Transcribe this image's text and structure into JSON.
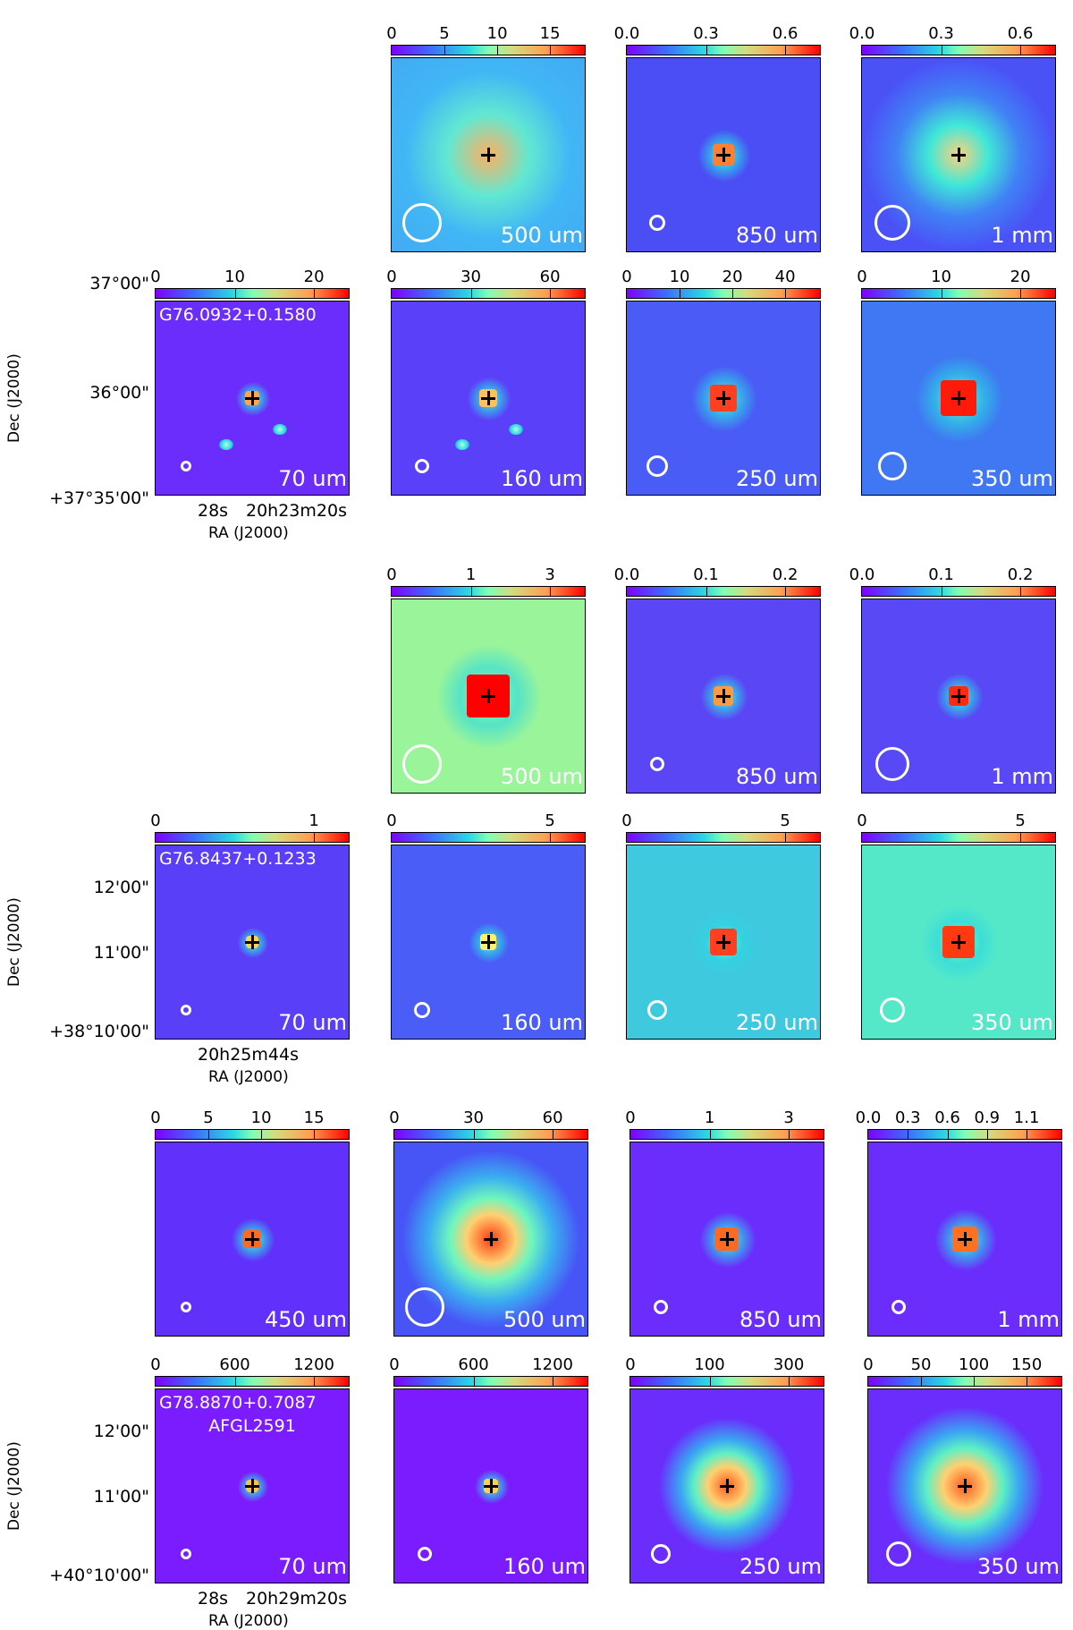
{
  "groups": [
    {
      "source": "G76.0932+0.1580",
      "ra_ticks": [
        "28s",
        "20h23m20s"
      ],
      "dec_ticks": [
        "37°00\"",
        "36°00\"",
        "+37°35'00\""
      ],
      "ra_label": "RA (J2000)",
      "dec_label": "Dec (J2000)",
      "top_row": [
        {
          "wave": "500 um",
          "ticks": [
            "0",
            "5",
            "10",
            "15"
          ]
        },
        {
          "wave": "850 um",
          "ticks": [
            "0.0",
            "0.3",
            "0.6"
          ]
        },
        {
          "wave": "1 mm",
          "ticks": [
            "0.0",
            "0.3",
            "0.6"
          ]
        }
      ],
      "bottom_row": [
        {
          "wave": "70 um",
          "ticks": [
            "0",
            "10",
            "20"
          ]
        },
        {
          "wave": "160 um",
          "ticks": [
            "0",
            "30",
            "60"
          ]
        },
        {
          "wave": "250 um",
          "ticks": [
            "0",
            "10",
            "20",
            "40"
          ]
        },
        {
          "wave": "350 um",
          "ticks": [
            "0",
            "10",
            "20"
          ]
        }
      ]
    },
    {
      "source": "G76.8437+0.1233",
      "ra_ticks": [
        "20h25m44s"
      ],
      "dec_ticks": [
        "12'00\"",
        "11'00\"",
        "+38°10'00\""
      ],
      "ra_label": "RA (J2000)",
      "dec_label": "Dec (J2000)",
      "top_row": [
        {
          "wave": "500 um",
          "ticks": [
            "0",
            "1",
            "3"
          ]
        },
        {
          "wave": "850 um",
          "ticks": [
            "0.0",
            "0.1",
            "0.2"
          ]
        },
        {
          "wave": "1 mm",
          "ticks": [
            "0.0",
            "0.1",
            "0.2"
          ]
        }
      ],
      "bottom_row": [
        {
          "wave": "70 um",
          "ticks": [
            "0",
            "1"
          ]
        },
        {
          "wave": "160 um",
          "ticks": [
            "0",
            "5"
          ]
        },
        {
          "wave": "250 um",
          "ticks": [
            "0",
            "5"
          ]
        },
        {
          "wave": "350 um",
          "ticks": [
            "0",
            "5"
          ]
        }
      ]
    },
    {
      "source": "G78.8870+0.7087",
      "source_alias": "AFGL2591",
      "ra_ticks": [
        "28s",
        "20h29m20s"
      ],
      "dec_ticks": [
        "12'00\"",
        "11'00\"",
        "+40°10'00\""
      ],
      "ra_label": "RA (J2000)",
      "dec_label": "Dec (J2000)",
      "top_row": [
        {
          "wave": "450 um",
          "ticks": [
            "0",
            "5",
            "10",
            "15"
          ]
        },
        {
          "wave": "500 um",
          "ticks": [
            "0",
            "30",
            "60"
          ]
        },
        {
          "wave": "850 um",
          "ticks": [
            "0",
            "1",
            "3"
          ]
        },
        {
          "wave": "1 mm",
          "ticks": [
            "0.0",
            "0.3",
            "0.6",
            "0.9",
            "1.1"
          ]
        }
      ],
      "bottom_row": [
        {
          "wave": "70 um",
          "ticks": [
            "0",
            "600",
            "1200"
          ]
        },
        {
          "wave": "160 um",
          "ticks": [
            "0",
            "600",
            "1200"
          ]
        },
        {
          "wave": "250 um",
          "ticks": [
            "0",
            "100",
            "300"
          ]
        },
        {
          "wave": "350 um",
          "ticks": [
            "0",
            "50",
            "100",
            "150"
          ]
        }
      ]
    }
  ],
  "colors": {
    "violet": "#7f00ff",
    "blue": "#4a5cf6",
    "cyan": "#2ad8e3",
    "green": "#80ffb4",
    "red": "#ff0000"
  }
}
